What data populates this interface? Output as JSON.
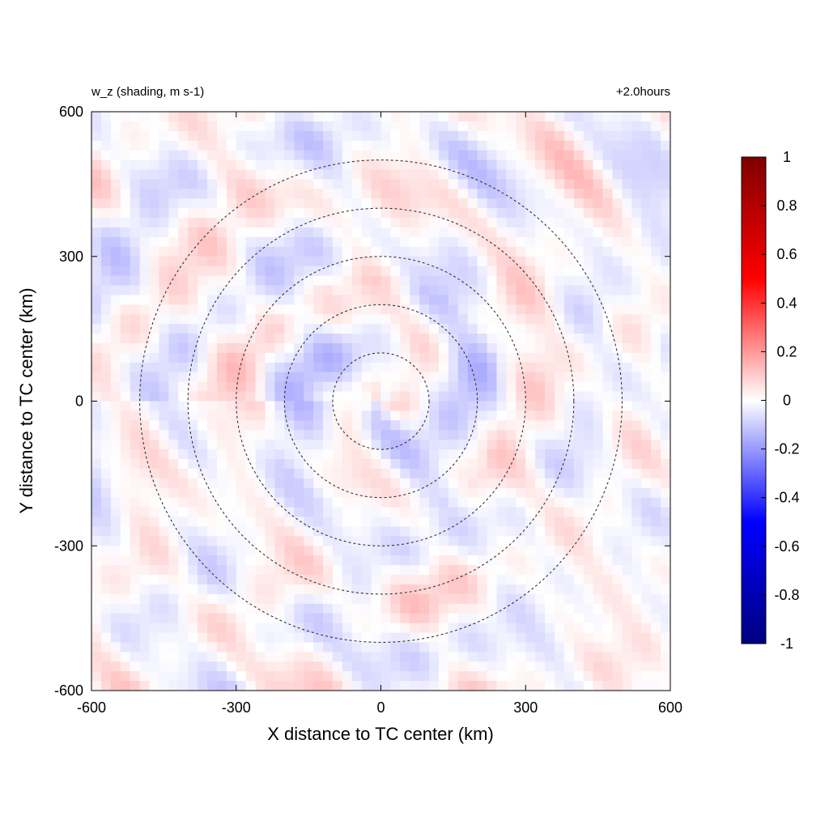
{
  "chart_data": {
    "type": "heatmap",
    "title_left": "w_z (shading, m s-1)",
    "title_right": "+2.0hours",
    "xlabel": "X distance to TC center (km)",
    "ylabel": "Y distance to TC center (km)",
    "xlim": [
      -600,
      600
    ],
    "ylim": [
      -600,
      600
    ],
    "x_ticks": [
      "-600",
      "-300",
      "0",
      "300",
      "600"
    ],
    "y_ticks": [
      "600",
      "300",
      "0",
      "-300",
      "-600"
    ],
    "x_tick_values": [
      -600,
      -300,
      0,
      300,
      600
    ],
    "y_tick_values": [
      600,
      300,
      0,
      -300,
      -600
    ],
    "range_rings_km": [
      100,
      200,
      300,
      400,
      500
    ],
    "ring_style": "dashed",
    "colorbar": {
      "min": -1,
      "max": 1,
      "tick_labels": [
        "1",
        "0.8",
        "0.6",
        "0.4",
        "0.2",
        "0",
        "-0.2",
        "-0.4",
        "-0.6",
        "-0.8",
        "-1"
      ],
      "tick_values": [
        1,
        0.8,
        0.6,
        0.4,
        0.2,
        0,
        -0.2,
        -0.4,
        -0.6,
        -0.8,
        -1
      ],
      "colors": [
        "#00007f",
        "#0000ff",
        "#ffffff",
        "#ff0000",
        "#7f0000"
      ]
    },
    "field_description": "weak vertical velocity field, values mostly within -0.2 to 0.2 m s-1",
    "field_range": [
      -0.2,
      0.2
    ]
  }
}
